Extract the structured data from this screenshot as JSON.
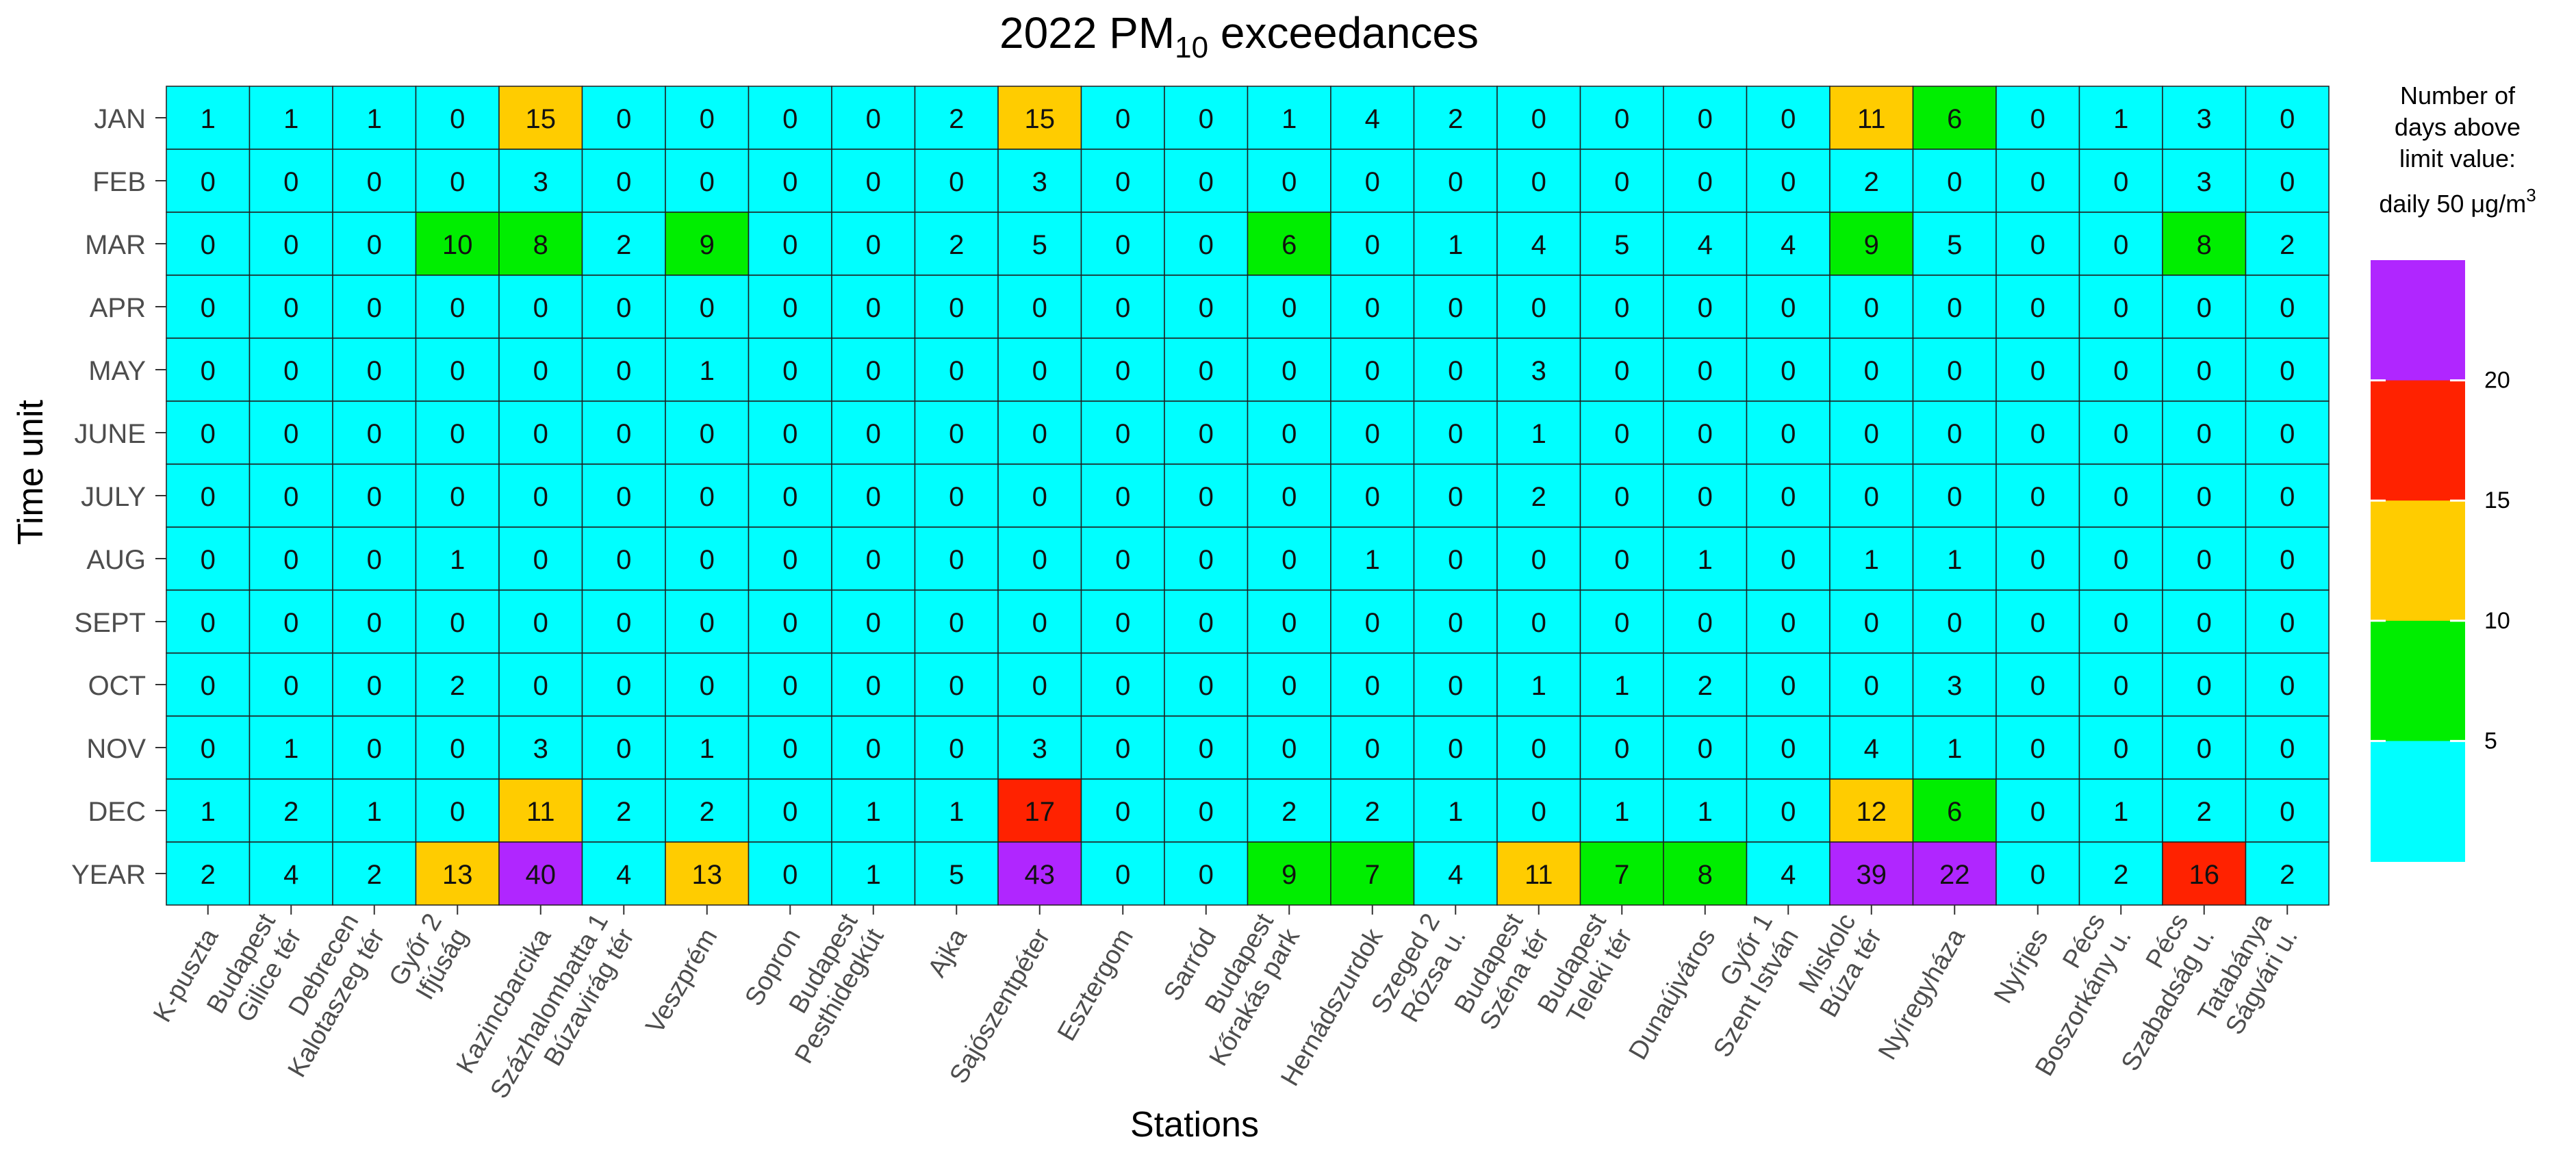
{
  "chart_data": {
    "type": "heatmap",
    "title": "2022 PM10 exceedances",
    "title_main": "2022 PM",
    "title_sub": "10",
    "title_rest": " exceedances",
    "xlabel": "Stations",
    "ylabel": "Time unit",
    "rows": [
      "JAN",
      "FEB",
      "MAR",
      "APR",
      "MAY",
      "JUNE",
      "JULY",
      "AUG",
      "SEPT",
      "OCT",
      "NOV",
      "DEC",
      "YEAR"
    ],
    "columns": [
      [
        "K-puszta"
      ],
      [
        "Budapest",
        "Gilice tér"
      ],
      [
        "Debrecen",
        "Kalotaszeg tér"
      ],
      [
        "Győr 2",
        "Ifjúság"
      ],
      [
        "Kazincbarcika"
      ],
      [
        "Százhalombatta 1",
        "Búzavirág tér"
      ],
      [
        "Veszprém"
      ],
      [
        "Sopron"
      ],
      [
        "Budapest",
        "Pesthidegkút"
      ],
      [
        "Ajka"
      ],
      [
        "Sajószentpéter"
      ],
      [
        "Esztergom"
      ],
      [
        "Sarród"
      ],
      [
        "Budapest",
        "Kőrakás park"
      ],
      [
        "Hernádszurdok"
      ],
      [
        "Szeged 2",
        "Rózsa u."
      ],
      [
        "Budapest",
        "Széna tér"
      ],
      [
        "Budapest",
        "Teleki tér"
      ],
      [
        "Dunaújváros"
      ],
      [
        "Győr 1",
        "Szent István"
      ],
      [
        "Miskolc",
        "Búza tér"
      ],
      [
        "Nyíregyháza"
      ],
      [
        "Nyírjes"
      ],
      [
        "Pécs",
        "Boszorkány u."
      ],
      [
        "Pécs",
        "Szabadság u."
      ],
      [
        "Tatabánya",
        "Ságvári u."
      ]
    ],
    "values": [
      [
        1,
        1,
        1,
        0,
        15,
        0,
        0,
        0,
        0,
        2,
        15,
        0,
        0,
        1,
        4,
        2,
        0,
        0,
        0,
        0,
        11,
        6,
        0,
        1,
        3,
        0
      ],
      [
        0,
        0,
        0,
        0,
        3,
        0,
        0,
        0,
        0,
        0,
        3,
        0,
        0,
        0,
        0,
        0,
        0,
        0,
        0,
        0,
        2,
        0,
        0,
        0,
        3,
        0
      ],
      [
        0,
        0,
        0,
        10,
        8,
        2,
        9,
        0,
        0,
        2,
        5,
        0,
        0,
        6,
        0,
        1,
        4,
        5,
        4,
        4,
        9,
        5,
        0,
        0,
        8,
        2
      ],
      [
        0,
        0,
        0,
        0,
        0,
        0,
        0,
        0,
        0,
        0,
        0,
        0,
        0,
        0,
        0,
        0,
        0,
        0,
        0,
        0,
        0,
        0,
        0,
        0,
        0,
        0
      ],
      [
        0,
        0,
        0,
        0,
        0,
        0,
        1,
        0,
        0,
        0,
        0,
        0,
        0,
        0,
        0,
        0,
        3,
        0,
        0,
        0,
        0,
        0,
        0,
        0,
        0,
        0
      ],
      [
        0,
        0,
        0,
        0,
        0,
        0,
        0,
        0,
        0,
        0,
        0,
        0,
        0,
        0,
        0,
        0,
        1,
        0,
        0,
        0,
        0,
        0,
        0,
        0,
        0,
        0
      ],
      [
        0,
        0,
        0,
        0,
        0,
        0,
        0,
        0,
        0,
        0,
        0,
        0,
        0,
        0,
        0,
        0,
        2,
        0,
        0,
        0,
        0,
        0,
        0,
        0,
        0,
        0
      ],
      [
        0,
        0,
        0,
        1,
        0,
        0,
        0,
        0,
        0,
        0,
        0,
        0,
        0,
        0,
        1,
        0,
        0,
        0,
        1,
        0,
        1,
        1,
        0,
        0,
        0,
        0
      ],
      [
        0,
        0,
        0,
        0,
        0,
        0,
        0,
        0,
        0,
        0,
        0,
        0,
        0,
        0,
        0,
        0,
        0,
        0,
        0,
        0,
        0,
        0,
        0,
        0,
        0,
        0
      ],
      [
        0,
        0,
        0,
        2,
        0,
        0,
        0,
        0,
        0,
        0,
        0,
        0,
        0,
        0,
        0,
        0,
        1,
        1,
        2,
        0,
        0,
        3,
        0,
        0,
        0,
        0
      ],
      [
        0,
        1,
        0,
        0,
        3,
        0,
        1,
        0,
        0,
        0,
        3,
        0,
        0,
        0,
        0,
        0,
        0,
        0,
        0,
        0,
        4,
        1,
        0,
        0,
        0,
        0
      ],
      [
        1,
        2,
        1,
        0,
        11,
        2,
        2,
        0,
        1,
        1,
        17,
        0,
        0,
        2,
        2,
        1,
        0,
        1,
        1,
        0,
        12,
        6,
        0,
        1,
        2,
        0
      ],
      [
        2,
        4,
        2,
        13,
        40,
        4,
        13,
        0,
        1,
        5,
        43,
        0,
        0,
        9,
        7,
        4,
        11,
        7,
        8,
        4,
        39,
        22,
        0,
        2,
        16,
        2
      ]
    ],
    "color_scale": {
      "bins": [
        {
          "min": 0,
          "max": 5,
          "color": "#00FFFF"
        },
        {
          "min": 6,
          "max": 10,
          "color": "#00EE00"
        },
        {
          "min": 11,
          "max": 15,
          "color": "#FFCC00"
        },
        {
          "min": 16,
          "max": 20,
          "color": "#FF2200"
        },
        {
          "min": 21,
          "max": 999,
          "color": "#B026FF"
        }
      ],
      "ticks": [
        "5",
        "10",
        "15",
        "20"
      ]
    },
    "legend": {
      "title_lines": [
        "Number of",
        "days above",
        "limit value:"
      ],
      "unit_line": "daily 50 μg/m",
      "unit_sup": "3",
      "position": "right"
    }
  }
}
